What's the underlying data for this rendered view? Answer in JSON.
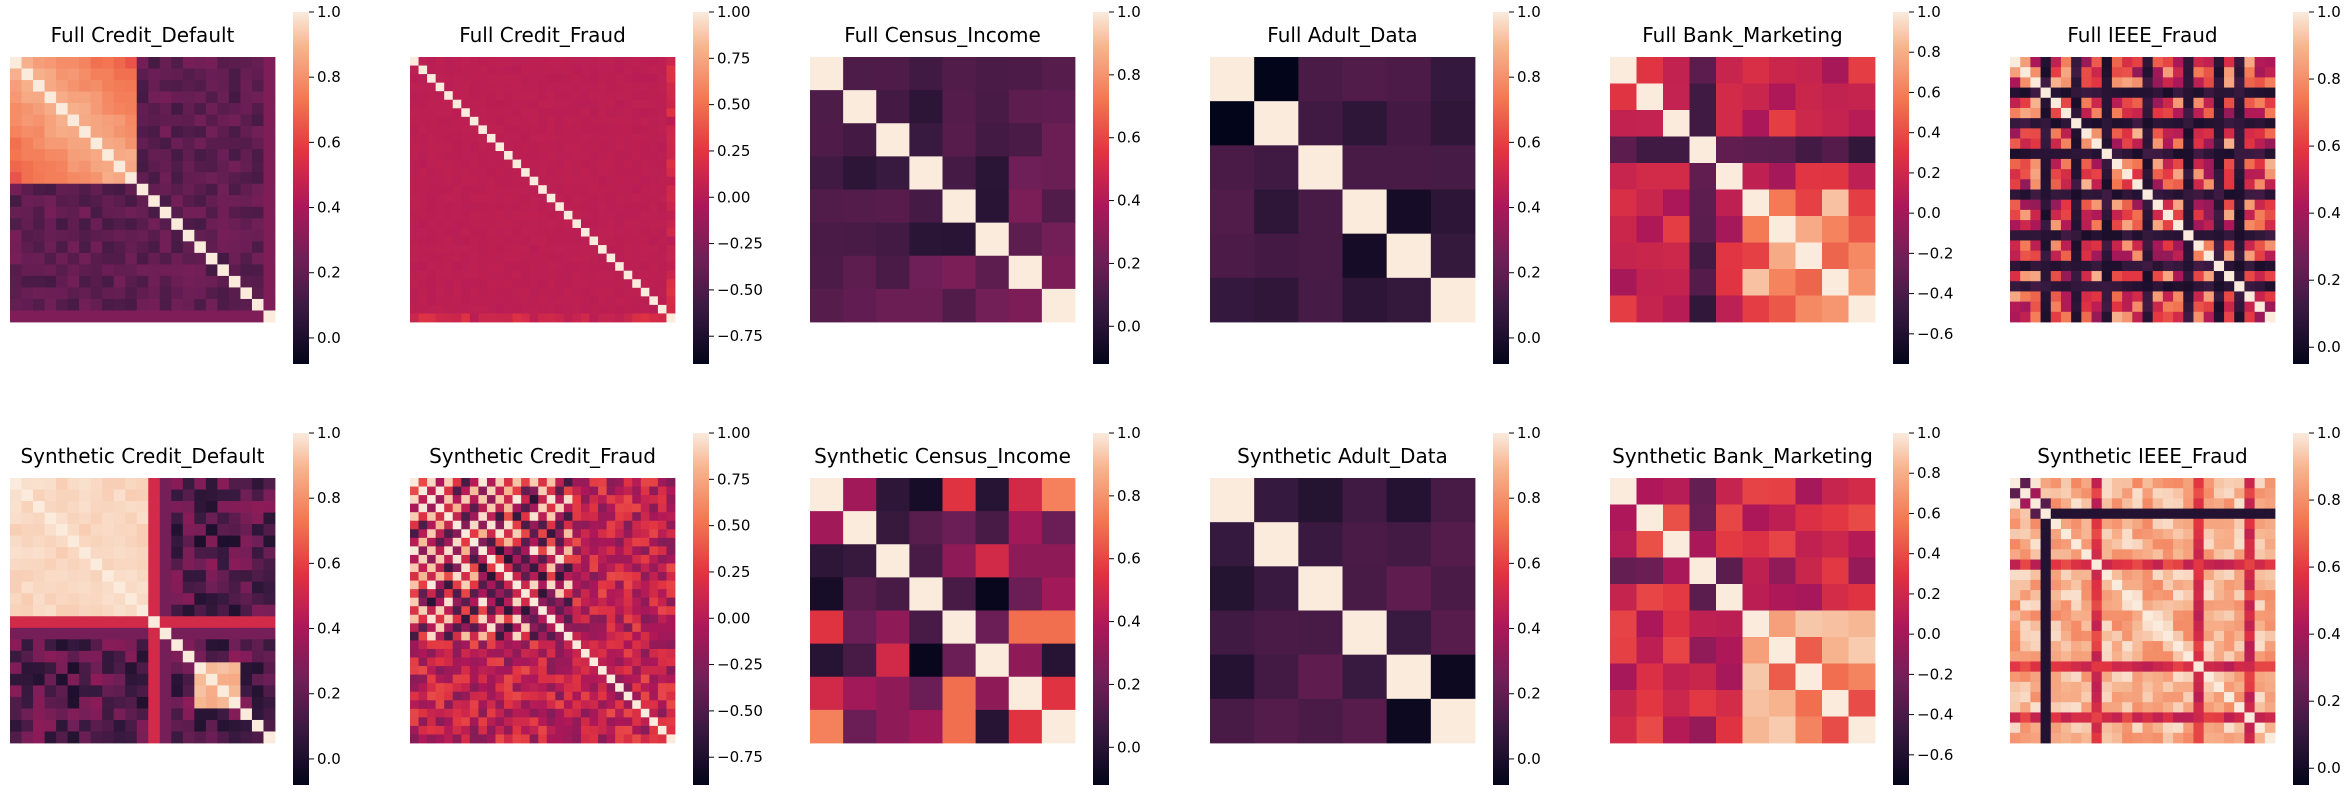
{
  "colormap": "rocket",
  "chart_data": [
    {
      "type": "heatmap",
      "title": "Full Credit_Default",
      "size": 23,
      "pattern": "credit_default_full",
      "colorbar_ticks": [
        1.0,
        0.8,
        0.6,
        0.4,
        0.2,
        0.0
      ],
      "colorbar_tick_labels": [
        "1.0",
        "0.8",
        "0.6",
        "0.4",
        "0.2",
        "0.0"
      ],
      "vmin": -0.08,
      "vmax": 1.0
    },
    {
      "type": "heatmap",
      "title": "Full Credit_Fraud",
      "size": 31,
      "pattern": "credit_fraud_full",
      "colorbar_ticks": [
        1.0,
        0.75,
        0.5,
        0.25,
        0.0,
        -0.25,
        -0.5,
        -0.75
      ],
      "colorbar_tick_labels": [
        "1.00",
        "0.75",
        "0.50",
        "0.25",
        "0.00",
        "−0.25",
        "−0.50",
        "−0.75"
      ],
      "vmin": -0.9,
      "vmax": 1.0
    },
    {
      "type": "heatmap",
      "title": "Full Census_Income",
      "size": 8,
      "pattern": "census_full",
      "colorbar_ticks": [
        1.0,
        0.8,
        0.6,
        0.4,
        0.2,
        0.0
      ],
      "colorbar_tick_labels": [
        "1.0",
        "0.8",
        "0.6",
        "0.4",
        "0.2",
        "0.0"
      ],
      "vmin": -0.12,
      "vmax": 1.0
    },
    {
      "type": "heatmap",
      "title": "Full Adult_Data",
      "size": 6,
      "pattern": "adult_full",
      "colorbar_ticks": [
        1.0,
        0.8,
        0.6,
        0.4,
        0.2,
        0.0
      ],
      "colorbar_tick_labels": [
        "1.0",
        "0.8",
        "0.6",
        "0.4",
        "0.2",
        "0.0"
      ],
      "vmin": -0.08,
      "vmax": 1.0
    },
    {
      "type": "heatmap",
      "title": "Full Bank_Marketing",
      "size": 10,
      "pattern": "bank_full",
      "colorbar_ticks": [
        1.0,
        0.8,
        0.6,
        0.4,
        0.2,
        0.0,
        -0.2,
        -0.4,
        -0.6
      ],
      "colorbar_tick_labels": [
        "1.0",
        "0.8",
        "0.6",
        "0.4",
        "0.2",
        "0.0",
        "−0.2",
        "−0.4",
        "−0.6"
      ],
      "vmin": -0.75,
      "vmax": 1.0
    },
    {
      "type": "heatmap",
      "title": "Full IEEE_Fraud",
      "size": 26,
      "pattern": "ieee_full",
      "colorbar_ticks": [
        1.0,
        0.8,
        0.6,
        0.4,
        0.2,
        0.0
      ],
      "colorbar_tick_labels": [
        "1.0",
        "0.8",
        "0.6",
        "0.4",
        "0.2",
        "0.0"
      ],
      "vmin": -0.05,
      "vmax": 1.0
    },
    {
      "type": "heatmap",
      "title": "Synthetic Credit_Default",
      "size": 23,
      "pattern": "credit_default_syn",
      "colorbar_ticks": [
        1.0,
        0.8,
        0.6,
        0.4,
        0.2,
        0.0
      ],
      "colorbar_tick_labels": [
        "1.0",
        "0.8",
        "0.6",
        "0.4",
        "0.2",
        "0.0"
      ],
      "vmin": -0.08,
      "vmax": 1.0
    },
    {
      "type": "heatmap",
      "title": "Synthetic Credit_Fraud",
      "size": 31,
      "pattern": "credit_fraud_syn",
      "colorbar_ticks": [
        1.0,
        0.75,
        0.5,
        0.25,
        0.0,
        -0.25,
        -0.5,
        -0.75
      ],
      "colorbar_tick_labels": [
        "1.00",
        "0.75",
        "0.50",
        "0.25",
        "0.00",
        "−0.25",
        "−0.50",
        "−0.75"
      ],
      "vmin": -0.9,
      "vmax": 1.0
    },
    {
      "type": "heatmap",
      "title": "Synthetic Census_Income",
      "size": 8,
      "pattern": "census_syn",
      "colorbar_ticks": [
        1.0,
        0.8,
        0.6,
        0.4,
        0.2,
        0.0
      ],
      "colorbar_tick_labels": [
        "1.0",
        "0.8",
        "0.6",
        "0.4",
        "0.2",
        "0.0"
      ],
      "vmin": -0.12,
      "vmax": 1.0
    },
    {
      "type": "heatmap",
      "title": "Synthetic Adult_Data",
      "size": 6,
      "pattern": "adult_syn",
      "colorbar_ticks": [
        1.0,
        0.8,
        0.6,
        0.4,
        0.2,
        0.0
      ],
      "colorbar_tick_labels": [
        "1.0",
        "0.8",
        "0.6",
        "0.4",
        "0.2",
        "0.0"
      ],
      "vmin": -0.08,
      "vmax": 1.0
    },
    {
      "type": "heatmap",
      "title": "Synthetic Bank_Marketing",
      "size": 10,
      "pattern": "bank_syn",
      "colorbar_ticks": [
        1.0,
        0.8,
        0.6,
        0.4,
        0.2,
        0.0,
        -0.2,
        -0.4,
        -0.6
      ],
      "colorbar_tick_labels": [
        "1.0",
        "0.8",
        "0.6",
        "0.4",
        "0.2",
        "0.0",
        "−0.2",
        "−0.4",
        "−0.6"
      ],
      "vmin": -0.75,
      "vmax": 1.0
    },
    {
      "type": "heatmap",
      "title": "Synthetic IEEE_Fraud",
      "size": 26,
      "pattern": "ieee_syn",
      "colorbar_ticks": [
        1.0,
        0.8,
        0.6,
        0.4,
        0.2,
        0.0
      ],
      "colorbar_tick_labels": [
        "1.0",
        "0.8",
        "0.6",
        "0.4",
        "0.2",
        "0.0"
      ],
      "vmin": -0.05,
      "vmax": 1.0
    }
  ]
}
